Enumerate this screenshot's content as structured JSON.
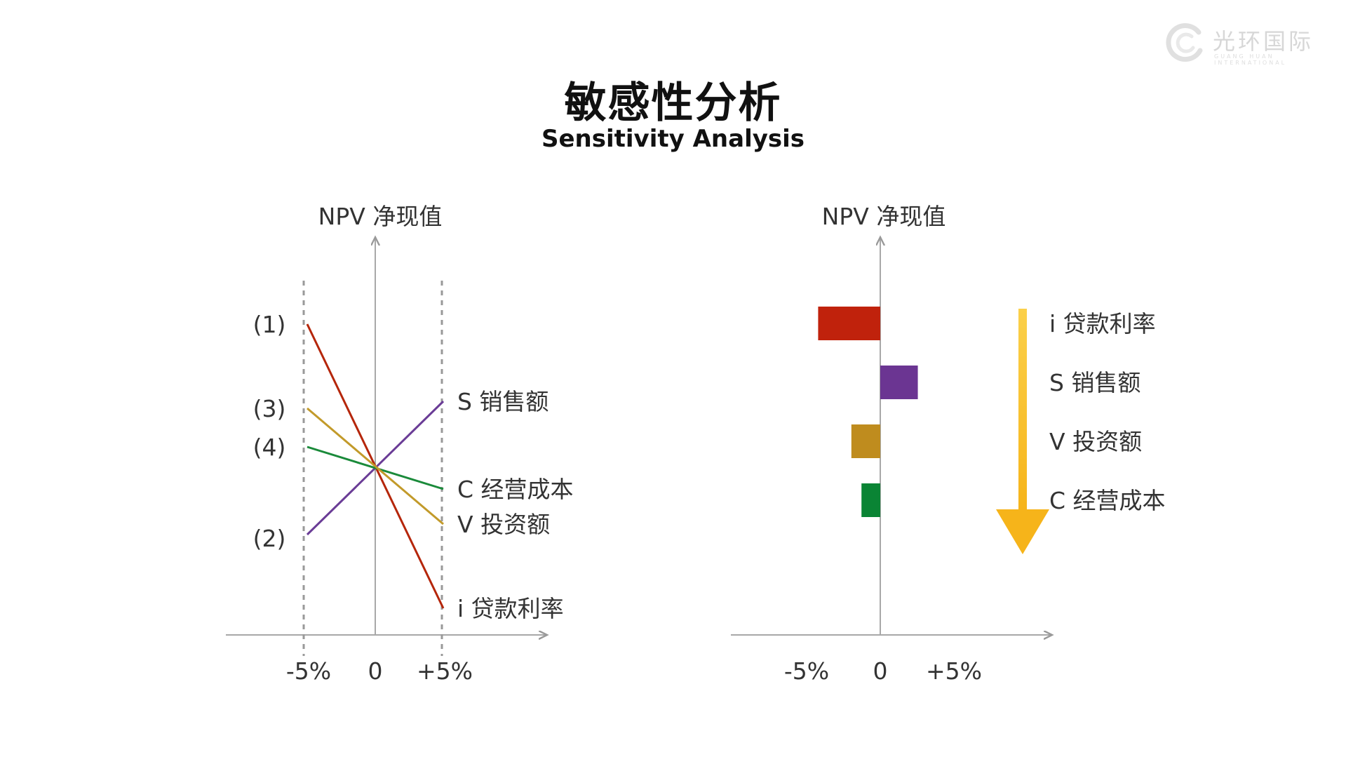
{
  "header": {
    "title_cn": "敏感性分析",
    "title_en": "Sensitivity Analysis"
  },
  "logo": {
    "text": "光环国际",
    "subtext": "GUANG HUAN INTERNATIONAL",
    "icon": "logo-swirl-icon"
  },
  "chart_data": [
    {
      "type": "line",
      "ylabel": "NPV 净现值",
      "xlabel": "",
      "x_ticks": [
        "-5%",
        "0",
        "+5%"
      ],
      "x": [
        -5,
        5
      ],
      "grid": false,
      "series": [
        {
          "name": "i 贷款利率",
          "marker": "(1)",
          "color": "#b5260a",
          "values": [
            4.1,
            -4.0
          ]
        },
        {
          "name": "S 销售额",
          "color": "#6a3c96",
          "values": [
            -1.9,
            1.9
          ]
        },
        {
          "name": "C 经营成本",
          "marker": "(4)",
          "color": "#1a8a3a",
          "values": [
            0.6,
            -0.6
          ]
        },
        {
          "name": "V 投资额",
          "marker": "(3)",
          "color": "#c29a2a",
          "values": [
            1.7,
            -1.6
          ]
        }
      ],
      "side_markers": [
        {
          "label": "(1)",
          "value": 4.1
        },
        {
          "label": "(3)",
          "value": 1.7
        },
        {
          "label": "(4)",
          "value": 0.6
        },
        {
          "label": "(2)",
          "value": -2.0
        }
      ]
    },
    {
      "type": "bar",
      "orientation": "horizontal",
      "ylabel": "NPV 净现值",
      "x_ticks": [
        "-5%",
        "0",
        "+5%"
      ],
      "categories": [
        "i 贷款利率",
        "S 销售额",
        "V 投资额",
        "C 经营成本"
      ],
      "values": [
        -4.3,
        2.6,
        -2.0,
        -1.3
      ],
      "colors": [
        "#c0220c",
        "#6b3592",
        "#bf8c1e",
        "#0a8434"
      ],
      "grid": false,
      "annotation": {
        "type": "down-arrow",
        "color": "#f7b51c",
        "icon": "down-arrow-icon"
      }
    }
  ]
}
